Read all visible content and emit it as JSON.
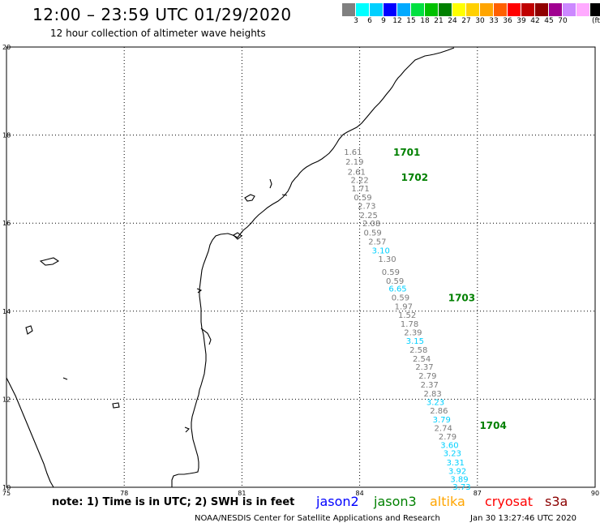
{
  "header": {
    "title": "12:00 – 23:59 UTC 01/29/2020",
    "subtitle": "12 hour collection of altimeter wave heights"
  },
  "colorbar": {
    "colors": [
      "#808080",
      "#00ffff",
      "#00d0ff",
      "#0000ff",
      "#00aaff",
      "#00e040",
      "#00c000",
      "#008000",
      "#ffff00",
      "#ffd000",
      "#ffa500",
      "#ff6000",
      "#ff0000",
      "#c00000",
      "#900000",
      "#a00090",
      "#cc88ff",
      "#ffaaff",
      "#000000"
    ],
    "labels": [
      "3",
      "6",
      "9",
      "12",
      "15",
      "18",
      "21",
      "24",
      "27",
      "30",
      "33",
      "36",
      "39",
      "42",
      "45",
      "70"
    ],
    "unit": "(ft)"
  },
  "axes": {
    "x_ticks": [
      "75",
      "78",
      "81",
      "84",
      "87",
      "90"
    ],
    "y_ticks": [
      "20",
      "18",
      "16",
      "14",
      "12",
      "10"
    ],
    "xlim": [
      75,
      90
    ],
    "ylim": [
      10,
      20
    ]
  },
  "passes": [
    {
      "label": "1701",
      "lon": 85.2,
      "lat": 17.62
    },
    {
      "label": "1702",
      "lon": 85.4,
      "lat": 17.05
    },
    {
      "label": "1703",
      "lon": 86.6,
      "lat": 14.32
    },
    {
      "label": "1704",
      "lon": 87.4,
      "lat": 11.42
    }
  ],
  "observations": [
    {
      "v": "1.61",
      "lon": 83.83,
      "lat": 17.62,
      "c": "gray"
    },
    {
      "v": "2.19",
      "lon": 83.87,
      "lat": 17.4,
      "c": "gray"
    },
    {
      "v": "2.61",
      "lon": 83.92,
      "lat": 17.17,
      "c": "gray"
    },
    {
      "v": "2.22",
      "lon": 84.0,
      "lat": 16.99,
      "c": "gray"
    },
    {
      "v": "1.71",
      "lon": 84.02,
      "lat": 16.8,
      "c": "gray"
    },
    {
      "v": "0.59",
      "lon": 84.08,
      "lat": 16.59,
      "c": "gray"
    },
    {
      "v": "2.73",
      "lon": 84.18,
      "lat": 16.4,
      "c": "gray"
    },
    {
      "v": "2.25",
      "lon": 84.23,
      "lat": 16.19,
      "c": "gray"
    },
    {
      "v": "2.08",
      "lon": 84.3,
      "lat": 16.0,
      "c": "gray"
    },
    {
      "v": "0.59",
      "lon": 84.33,
      "lat": 15.79,
      "c": "gray"
    },
    {
      "v": "2.57",
      "lon": 84.45,
      "lat": 15.59,
      "c": "gray"
    },
    {
      "v": "3.10",
      "lon": 84.54,
      "lat": 15.39,
      "c": "cyan"
    },
    {
      "v": "1.30",
      "lon": 84.7,
      "lat": 15.19,
      "c": "gray"
    },
    {
      "v": "0.59",
      "lon": 84.79,
      "lat": 14.9,
      "c": "gray"
    },
    {
      "v": "0.59",
      "lon": 84.9,
      "lat": 14.7,
      "c": "gray"
    },
    {
      "v": "6.65",
      "lon": 84.97,
      "lat": 14.52,
      "c": "cyan"
    },
    {
      "v": "0.59",
      "lon": 85.04,
      "lat": 14.32,
      "c": "gray"
    },
    {
      "v": "1.97",
      "lon": 85.12,
      "lat": 14.12,
      "c": "gray"
    },
    {
      "v": "1.52",
      "lon": 85.21,
      "lat": 13.92,
      "c": "gray"
    },
    {
      "v": "1.78",
      "lon": 85.27,
      "lat": 13.72,
      "c": "gray"
    },
    {
      "v": "2.39",
      "lon": 85.36,
      "lat": 13.53,
      "c": "gray"
    },
    {
      "v": "3.15",
      "lon": 85.41,
      "lat": 13.33,
      "c": "cyan"
    },
    {
      "v": "2.58",
      "lon": 85.5,
      "lat": 13.13,
      "c": "gray"
    },
    {
      "v": "2.54",
      "lon": 85.58,
      "lat": 12.93,
      "c": "gray"
    },
    {
      "v": "2.37",
      "lon": 85.65,
      "lat": 12.74,
      "c": "gray"
    },
    {
      "v": "2.79",
      "lon": 85.73,
      "lat": 12.54,
      "c": "gray"
    },
    {
      "v": "2.37",
      "lon": 85.78,
      "lat": 12.34,
      "c": "gray"
    },
    {
      "v": "2.83",
      "lon": 85.86,
      "lat": 12.14,
      "c": "gray"
    },
    {
      "v": "3.23",
      "lon": 85.93,
      "lat": 11.94,
      "c": "cyan"
    },
    {
      "v": "2.86",
      "lon": 86.02,
      "lat": 11.75,
      "c": "gray"
    },
    {
      "v": "3.79",
      "lon": 86.09,
      "lat": 11.55,
      "c": "cyan"
    },
    {
      "v": "2.74",
      "lon": 86.13,
      "lat": 11.35,
      "c": "gray"
    },
    {
      "v": "2.79",
      "lon": 86.24,
      "lat": 11.16,
      "c": "gray"
    },
    {
      "v": "3.60",
      "lon": 86.29,
      "lat": 10.97,
      "c": "cyan"
    },
    {
      "v": "3.23",
      "lon": 86.36,
      "lat": 10.78,
      "c": "cyan"
    },
    {
      "v": "3.31",
      "lon": 86.44,
      "lat": 10.57,
      "c": "cyan"
    },
    {
      "v": "3.92",
      "lon": 86.49,
      "lat": 10.38,
      "c": "cyan"
    },
    {
      "v": "3.89",
      "lon": 86.54,
      "lat": 10.19,
      "c": "cyan"
    },
    {
      "v": "3.73",
      "lon": 86.6,
      "lat": 10.02,
      "c": "cyan"
    }
  ],
  "footer": {
    "note": "note: 1) Time is in UTC; 2) SWH is in feet",
    "satellites": [
      {
        "name": "jason2",
        "color": "#0000ff"
      },
      {
        "name": "jason3",
        "color": "#008000"
      },
      {
        "name": "altika",
        "color": "#ffa500"
      },
      {
        "name": "cryosat",
        "color": "#ff0000"
      },
      {
        "name": "s3a",
        "color": "#8b0000"
      }
    ],
    "credit": "NOAA/NESDIS Center for Satellite Applications and Research",
    "timestamp": "Jan 30 13:27:46 UTC 2020"
  }
}
